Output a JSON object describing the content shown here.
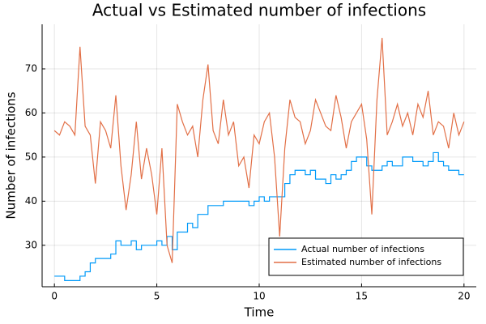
{
  "chart_data": {
    "type": "line",
    "title": "Actual vs Estimated number of infections",
    "x_label": "Time",
    "y_label": "Number of infections",
    "x": [
      0,
      0.25,
      0.5,
      0.75,
      1,
      1.25,
      1.5,
      1.75,
      2,
      2.25,
      2.5,
      2.75,
      3,
      3.25,
      3.5,
      3.75,
      4,
      4.25,
      4.5,
      4.75,
      5,
      5.25,
      5.5,
      5.75,
      6,
      6.25,
      6.5,
      6.75,
      7,
      7.25,
      7.5,
      7.75,
      8,
      8.25,
      8.5,
      8.75,
      9,
      9.25,
      9.5,
      9.75,
      10,
      10.25,
      10.5,
      10.75,
      11,
      11.25,
      11.5,
      11.75,
      12,
      12.25,
      12.5,
      12.75,
      13,
      13.25,
      13.5,
      13.75,
      14,
      14.25,
      14.5,
      14.75,
      15,
      15.25,
      15.5,
      15.75,
      16,
      16.25,
      16.5,
      16.75,
      17,
      17.25,
      17.5,
      17.75,
      18,
      18.25,
      18.5,
      18.75,
      19,
      19.25,
      19.5,
      19.75,
      20
    ],
    "series": [
      {
        "name": "Actual number of infections",
        "color": "#009af9",
        "step": true,
        "values": [
          23,
          23,
          22,
          22,
          22,
          23,
          24,
          26,
          27,
          27,
          27,
          28,
          31,
          30,
          30,
          31,
          29,
          30,
          30,
          30,
          31,
          30,
          32,
          29,
          33,
          33,
          35,
          34,
          37,
          37,
          39,
          39,
          39,
          40,
          40,
          40,
          40,
          40,
          39,
          40,
          41,
          40,
          41,
          41,
          41,
          44,
          46,
          47,
          47,
          46,
          47,
          45,
          45,
          44,
          46,
          45,
          46,
          47,
          49,
          50,
          50,
          48,
          47,
          47,
          48,
          49,
          48,
          48,
          50,
          50,
          49,
          49,
          48,
          49,
          51,
          49,
          48,
          47,
          47,
          46,
          46
        ]
      },
      {
        "name": "Estimated number of infections",
        "color": "#e26f46",
        "step": false,
        "values": [
          56,
          55,
          58,
          57,
          55,
          75,
          57,
          55,
          44,
          58,
          56,
          52,
          64,
          48,
          38,
          46,
          58,
          45,
          52,
          46,
          37,
          52,
          30,
          26,
          62,
          58,
          55,
          57,
          50,
          63,
          71,
          56,
          53,
          63,
          55,
          58,
          48,
          50,
          43,
          55,
          53,
          58,
          60,
          50,
          32,
          52,
          63,
          59,
          58,
          53,
          56,
          63,
          60,
          57,
          56,
          64,
          59,
          52,
          58,
          60,
          62,
          54,
          37,
          63,
          77,
          55,
          58,
          62,
          57,
          60,
          55,
          62,
          59,
          65,
          55,
          58,
          57,
          52,
          60,
          55,
          58
        ]
      }
    ],
    "xlim": [
      -0.6,
      20.6
    ],
    "ylim": [
      20.6,
      80.1
    ],
    "xticks": [
      0,
      5,
      10,
      15,
      20
    ],
    "yticks": [
      30,
      40,
      50,
      60,
      70
    ],
    "grid": true,
    "legend": "bottom-right"
  }
}
